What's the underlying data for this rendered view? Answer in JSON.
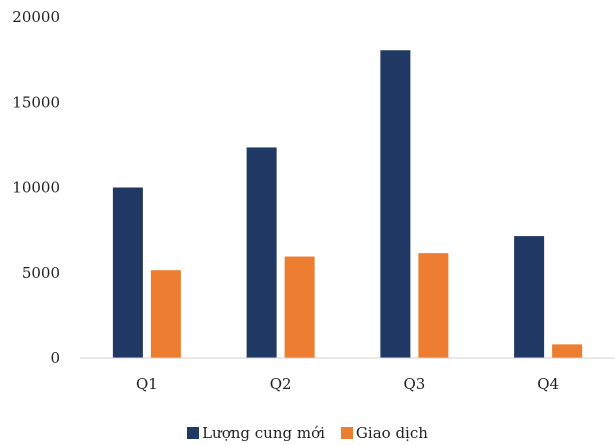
{
  "chart_data": {
    "type": "bar",
    "categories": [
      "Q1",
      "Q2",
      "Q3",
      "Q4"
    ],
    "series": [
      {
        "name": "Lượng cung mới",
        "values": [
          10000,
          12350,
          18050,
          7150
        ],
        "color": "#203864"
      },
      {
        "name": "Giao dịch",
        "values": [
          5150,
          5950,
          6150,
          800
        ],
        "color": "#ED7D31"
      }
    ],
    "yticks": [
      0,
      5000,
      10000,
      15000,
      20000
    ],
    "ylim": [
      0,
      20000
    ],
    "grid": false,
    "legend_position": "bottom"
  }
}
